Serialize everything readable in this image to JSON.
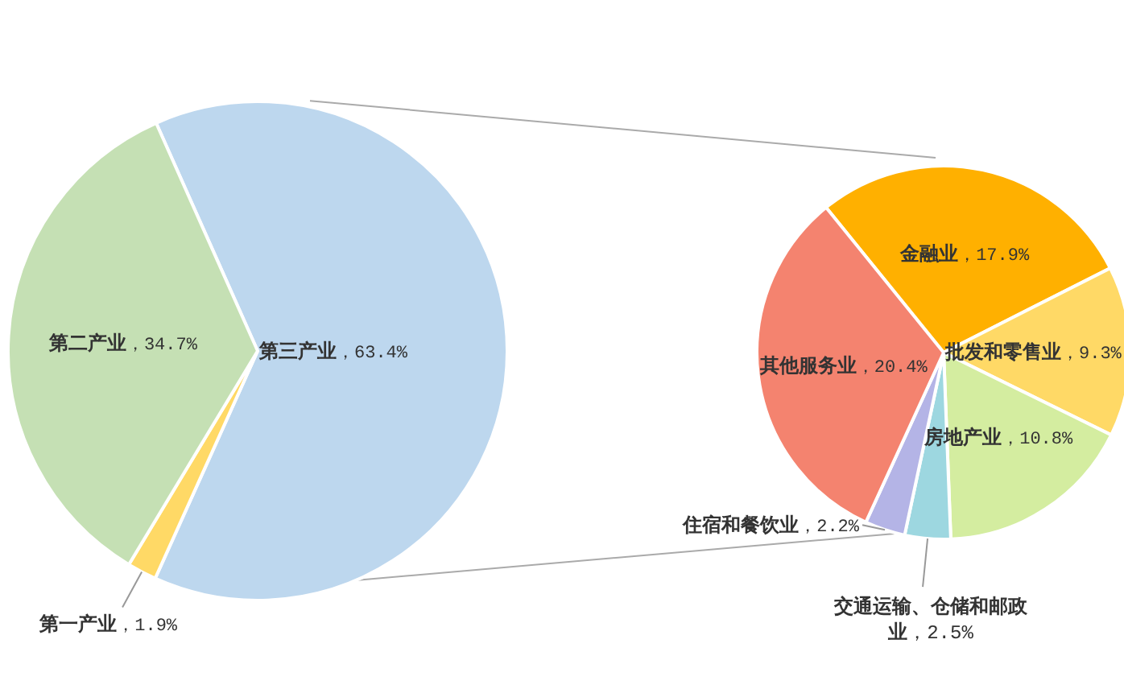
{
  "chart_data": [
    {
      "type": "pie",
      "categories": [
        "第三产业",
        "第一产业",
        "第二产业"
      ],
      "values": [
        63.4,
        1.9,
        34.7
      ],
      "colors": [
        "#bdd7ee",
        "#ffd966",
        "#c5e0b4"
      ],
      "value_labels": [
        "，63.4%",
        "，1.9%",
        "，34.7%"
      ]
    },
    {
      "type": "pie",
      "categories": [
        "金融业",
        "批发和零售业",
        "房地产业",
        "交通运输、仓储和邮政业",
        "住宿和餐饮业",
        "其他服务业"
      ],
      "values": [
        17.9,
        9.3,
        10.8,
        2.5,
        2.2,
        20.4
      ],
      "colors": [
        "#ffb000",
        "#ffd966",
        "#d4eda0",
        "#9dd7e0",
        "#b4b4e6",
        "#f4836f"
      ],
      "value_labels": [
        "，17.9%",
        "，9.3%",
        "，10.8%",
        "，2.5%",
        "，2.2%",
        "，20.4%"
      ]
    }
  ]
}
